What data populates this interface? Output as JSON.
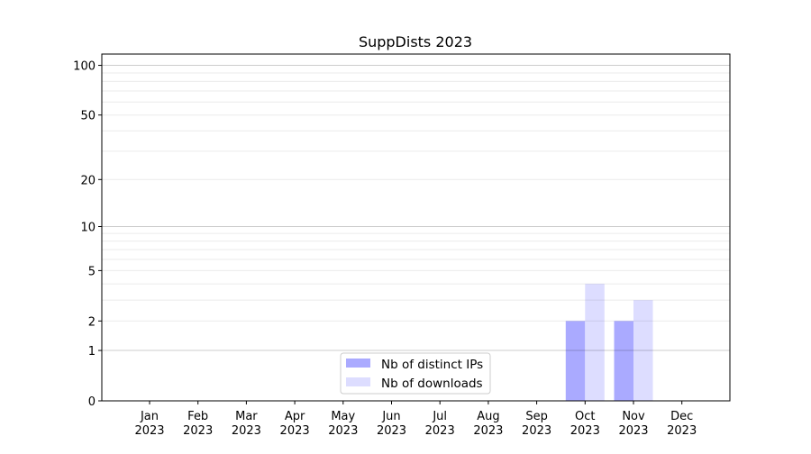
{
  "chart_data": {
    "type": "bar",
    "title": "SuppDists 2023",
    "xlabel": "",
    "ylabel": "",
    "yscale": "log(1+y)",
    "ylim": [
      0,
      117
    ],
    "yticks": [
      0,
      1,
      2,
      5,
      10,
      20,
      50,
      100
    ],
    "ytick_labels": [
      "0",
      "1",
      "2",
      "5",
      "10",
      "20",
      "50",
      "100"
    ],
    "minor_grid": [
      3,
      4,
      6,
      7,
      8,
      9,
      30,
      40,
      60,
      70,
      80,
      90
    ],
    "grid": true,
    "categories": [
      [
        "Jan",
        "2023"
      ],
      [
        "Feb",
        "2023"
      ],
      [
        "Mar",
        "2023"
      ],
      [
        "Apr",
        "2023"
      ],
      [
        "May",
        "2023"
      ],
      [
        "Jun",
        "2023"
      ],
      [
        "Jul",
        "2023"
      ],
      [
        "Aug",
        "2023"
      ],
      [
        "Sep",
        "2023"
      ],
      [
        "Oct",
        "2023"
      ],
      [
        "Nov",
        "2023"
      ],
      [
        "Dec",
        "2023"
      ]
    ],
    "series": [
      {
        "name": "Nb of distinct IPs",
        "color": "#aaaaff",
        "values": [
          0,
          0,
          0,
          0,
          0,
          0,
          0,
          0,
          0,
          2,
          2,
          0
        ]
      },
      {
        "name": "Nb of downloads",
        "color": "#ddddff",
        "values": [
          0,
          0,
          0,
          0,
          0,
          0,
          0,
          0,
          0,
          4,
          3,
          0
        ]
      }
    ],
    "legend_position": "lower-center"
  }
}
